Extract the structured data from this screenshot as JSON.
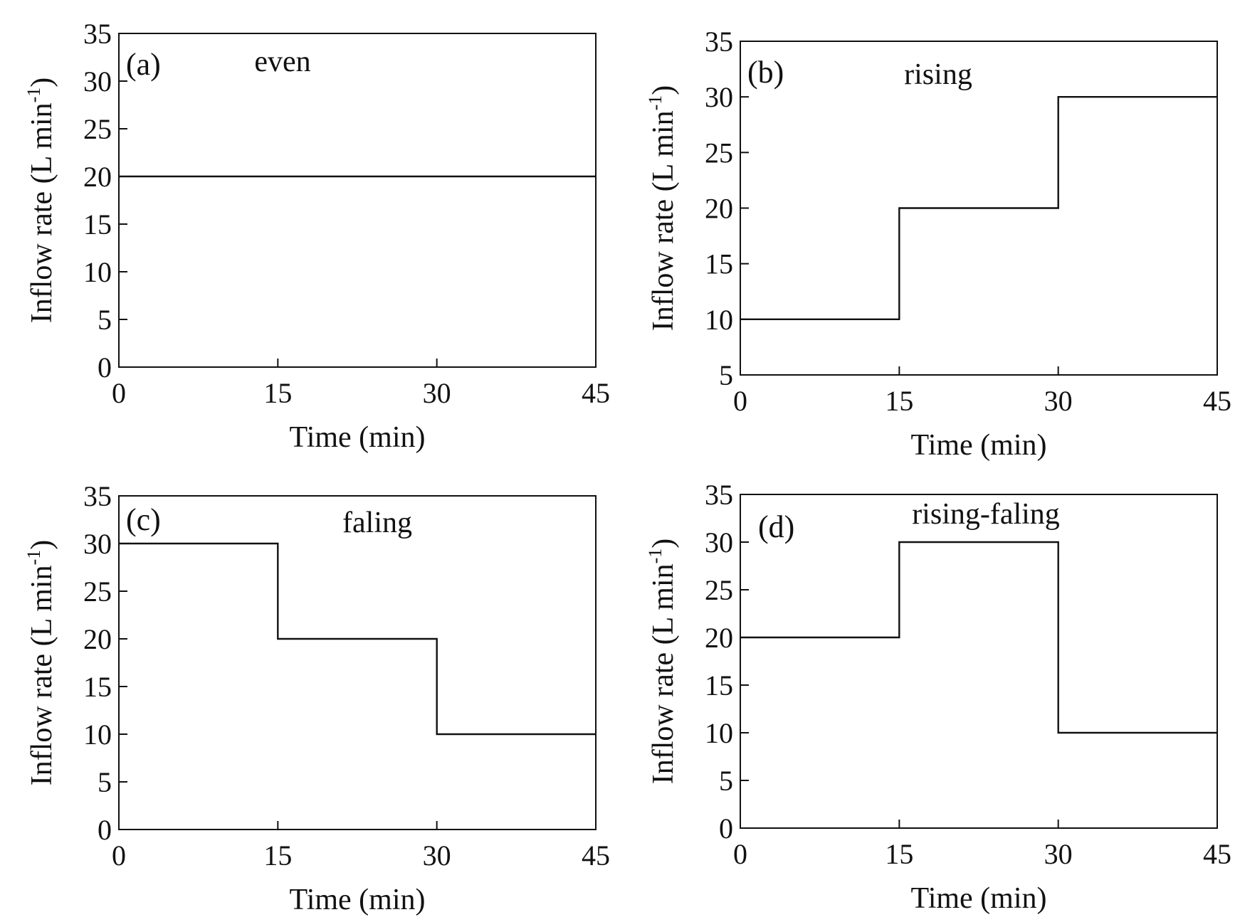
{
  "chart_data": [
    {
      "type": "line",
      "step": true,
      "panel_label": "(a)",
      "title": "even",
      "xlabel": "Time (min)",
      "ylabel_main": "Inflow rate (L min",
      "ylabel_sup": "-1",
      "ylabel_close": ")",
      "xlim": [
        0,
        45
      ],
      "ylim": [
        0,
        35
      ],
      "xticks": [
        0,
        15,
        30,
        45
      ],
      "xtick_labels": [
        "0",
        "15",
        "30",
        "45"
      ],
      "yticks": [
        0,
        5,
        10,
        15,
        20,
        25,
        30,
        35
      ],
      "ytick_labels": [
        "0",
        "5",
        "10",
        "15",
        "20",
        "25",
        "30",
        "35"
      ],
      "series": [
        {
          "name": "even",
          "x": [
            0,
            45
          ],
          "y": [
            20,
            20
          ]
        }
      ]
    },
    {
      "type": "line",
      "step": true,
      "panel_label": "(b)",
      "title": "rising",
      "xlabel": "Time (min)",
      "ylabel_main": "Inflow rate (L min",
      "ylabel_sup": "-1",
      "ylabel_close": ")",
      "xlim": [
        0,
        45
      ],
      "ylim": [
        5,
        35
      ],
      "xticks": [
        0,
        15,
        30,
        45
      ],
      "xtick_labels": [
        "0",
        "15",
        "30",
        "45"
      ],
      "yticks": [
        5,
        10,
        15,
        20,
        25,
        30,
        35
      ],
      "ytick_labels": [
        "5",
        "10",
        "15",
        "20",
        "25",
        "30",
        "35"
      ],
      "series": [
        {
          "name": "rising",
          "x": [
            0,
            15,
            15,
            30,
            30,
            45
          ],
          "y": [
            10,
            10,
            20,
            20,
            30,
            30
          ]
        }
      ]
    },
    {
      "type": "line",
      "step": true,
      "panel_label": "(c)",
      "title": "faling",
      "xlabel": "Time (min)",
      "ylabel_main": "Inflow rate (L min",
      "ylabel_sup": "-1",
      "ylabel_close": ")",
      "xlim": [
        0,
        45
      ],
      "ylim": [
        0,
        35
      ],
      "xticks": [
        0,
        15,
        30,
        45
      ],
      "xtick_labels": [
        "0",
        "15",
        "30",
        "45"
      ],
      "yticks": [
        0,
        5,
        10,
        15,
        20,
        25,
        30,
        35
      ],
      "ytick_labels": [
        "0",
        "5",
        "10",
        "15",
        "20",
        "25",
        "30",
        "35"
      ],
      "series": [
        {
          "name": "faling",
          "x": [
            0,
            15,
            15,
            30,
            30,
            45
          ],
          "y": [
            30,
            30,
            20,
            20,
            10,
            10
          ]
        }
      ]
    },
    {
      "type": "line",
      "step": true,
      "panel_label": "(d)",
      "title": "rising-faling",
      "xlabel": "Time (min)",
      "ylabel_main": "Inflow rate (L min",
      "ylabel_sup": "-1",
      "ylabel_close": ")",
      "xlim": [
        0,
        45
      ],
      "ylim": [
        0,
        35
      ],
      "xticks": [
        0,
        15,
        30,
        45
      ],
      "xtick_labels": [
        "0",
        "15",
        "30",
        "45"
      ],
      "yticks": [
        0,
        5,
        10,
        15,
        20,
        25,
        30,
        35
      ],
      "ytick_labels": [
        "0",
        "5",
        "10",
        "15",
        "20",
        "25",
        "30",
        "35"
      ],
      "series": [
        {
          "name": "rising-faling",
          "x": [
            0,
            15,
            15,
            30,
            30,
            45
          ],
          "y": [
            20,
            20,
            30,
            30,
            10,
            10
          ]
        }
      ]
    }
  ]
}
